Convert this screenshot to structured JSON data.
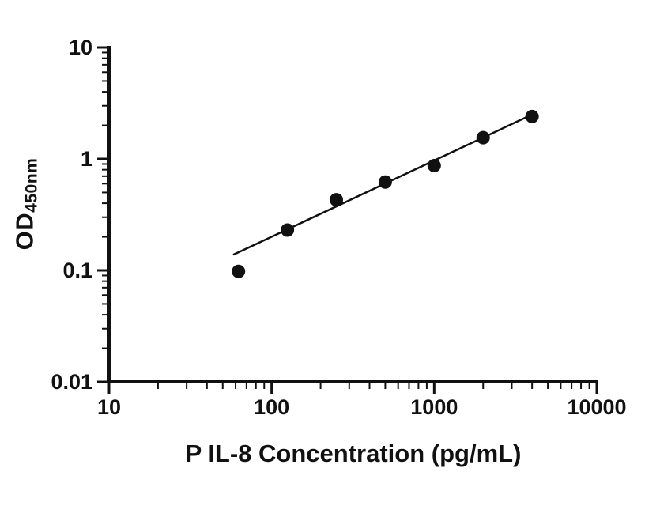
{
  "chart_data": {
    "type": "scatter",
    "title": "",
    "xlabel": "P IL-8 Concentration (pg/mL)",
    "ylabel_main": "OD",
    "ylabel_sub": "450nm",
    "xscale": "log",
    "yscale": "log",
    "xlim": [
      10,
      10000
    ],
    "ylim": [
      0.01,
      10
    ],
    "grid": "off",
    "legend": "none",
    "xticks": {
      "values": [
        10,
        100,
        1000,
        10000
      ],
      "labels": [
        "10",
        "100",
        "1000",
        "10000"
      ]
    },
    "yticks": {
      "values": [
        0.01,
        0.1,
        1,
        10
      ],
      "labels": [
        "0.01",
        "0.1",
        "1",
        "10"
      ]
    },
    "points": {
      "x": [
        62.5,
        125,
        250,
        500,
        1000,
        2000,
        4000
      ],
      "y": [
        0.098,
        0.23,
        0.43,
        0.62,
        0.87,
        1.55,
        2.4
      ]
    },
    "trend_line": {
      "x": [
        58,
        4000
      ],
      "y": [
        0.138,
        2.5
      ]
    },
    "marker_color": "#111111",
    "line_color": "#111111",
    "axis_color": "#111111",
    "background_color": "#ffffff"
  }
}
